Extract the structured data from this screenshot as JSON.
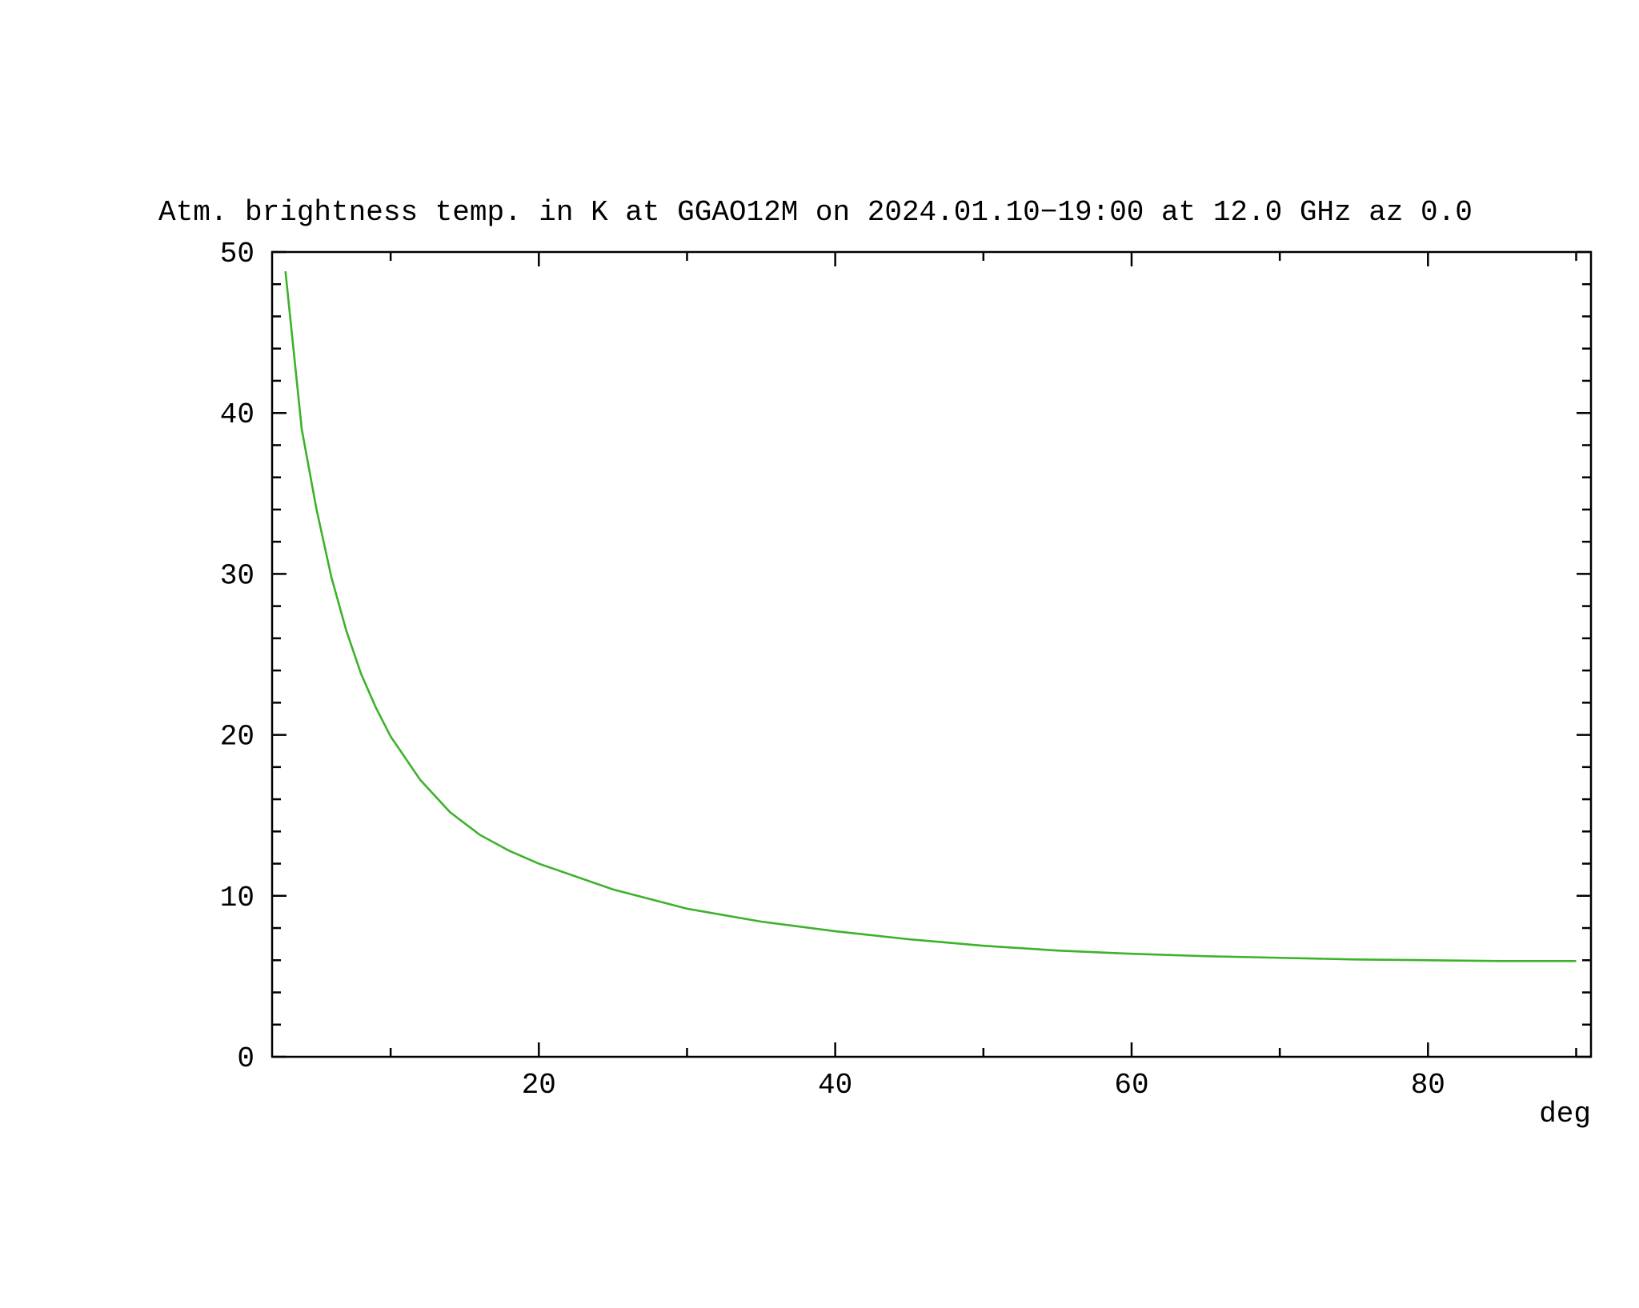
{
  "chart_data": {
    "type": "line",
    "title": "Atm. brightness temp. in K at GGAO12M  on 2024.01.10−19:00 at  12.0 GHz az    0.0",
    "x_label": "deg",
    "x": [
      2.9,
      4,
      5,
      6,
      7,
      8,
      9,
      10,
      12,
      14,
      16,
      18,
      20,
      25,
      30,
      35,
      40,
      45,
      50,
      55,
      60,
      65,
      70,
      75,
      80,
      85,
      90
    ],
    "series": [
      {
        "color": "#3cb22a",
        "values": [
          48.8,
          39,
          34,
          29.8,
          26.5,
          23.8,
          21.7,
          19.9,
          17.2,
          15.2,
          13.8,
          12.8,
          12.0,
          10.4,
          9.2,
          8.4,
          7.8,
          7.3,
          6.9,
          6.6,
          6.4,
          6.25,
          6.15,
          6.05,
          6.0,
          5.95,
          5.95
        ]
      }
    ],
    "xlim": [
      2,
      91
    ],
    "xticks": [
      20,
      40,
      60,
      80
    ],
    "xticks_minor": [
      10,
      30,
      50,
      70,
      90
    ],
    "ylim": [
      0,
      50
    ],
    "yticks": [
      0,
      10,
      20,
      30,
      40,
      50
    ],
    "yticks_minor": [
      2,
      4,
      6,
      8,
      12,
      14,
      16,
      18,
      22,
      24,
      26,
      28,
      32,
      34,
      36,
      38,
      42,
      44,
      46,
      48
    ]
  }
}
